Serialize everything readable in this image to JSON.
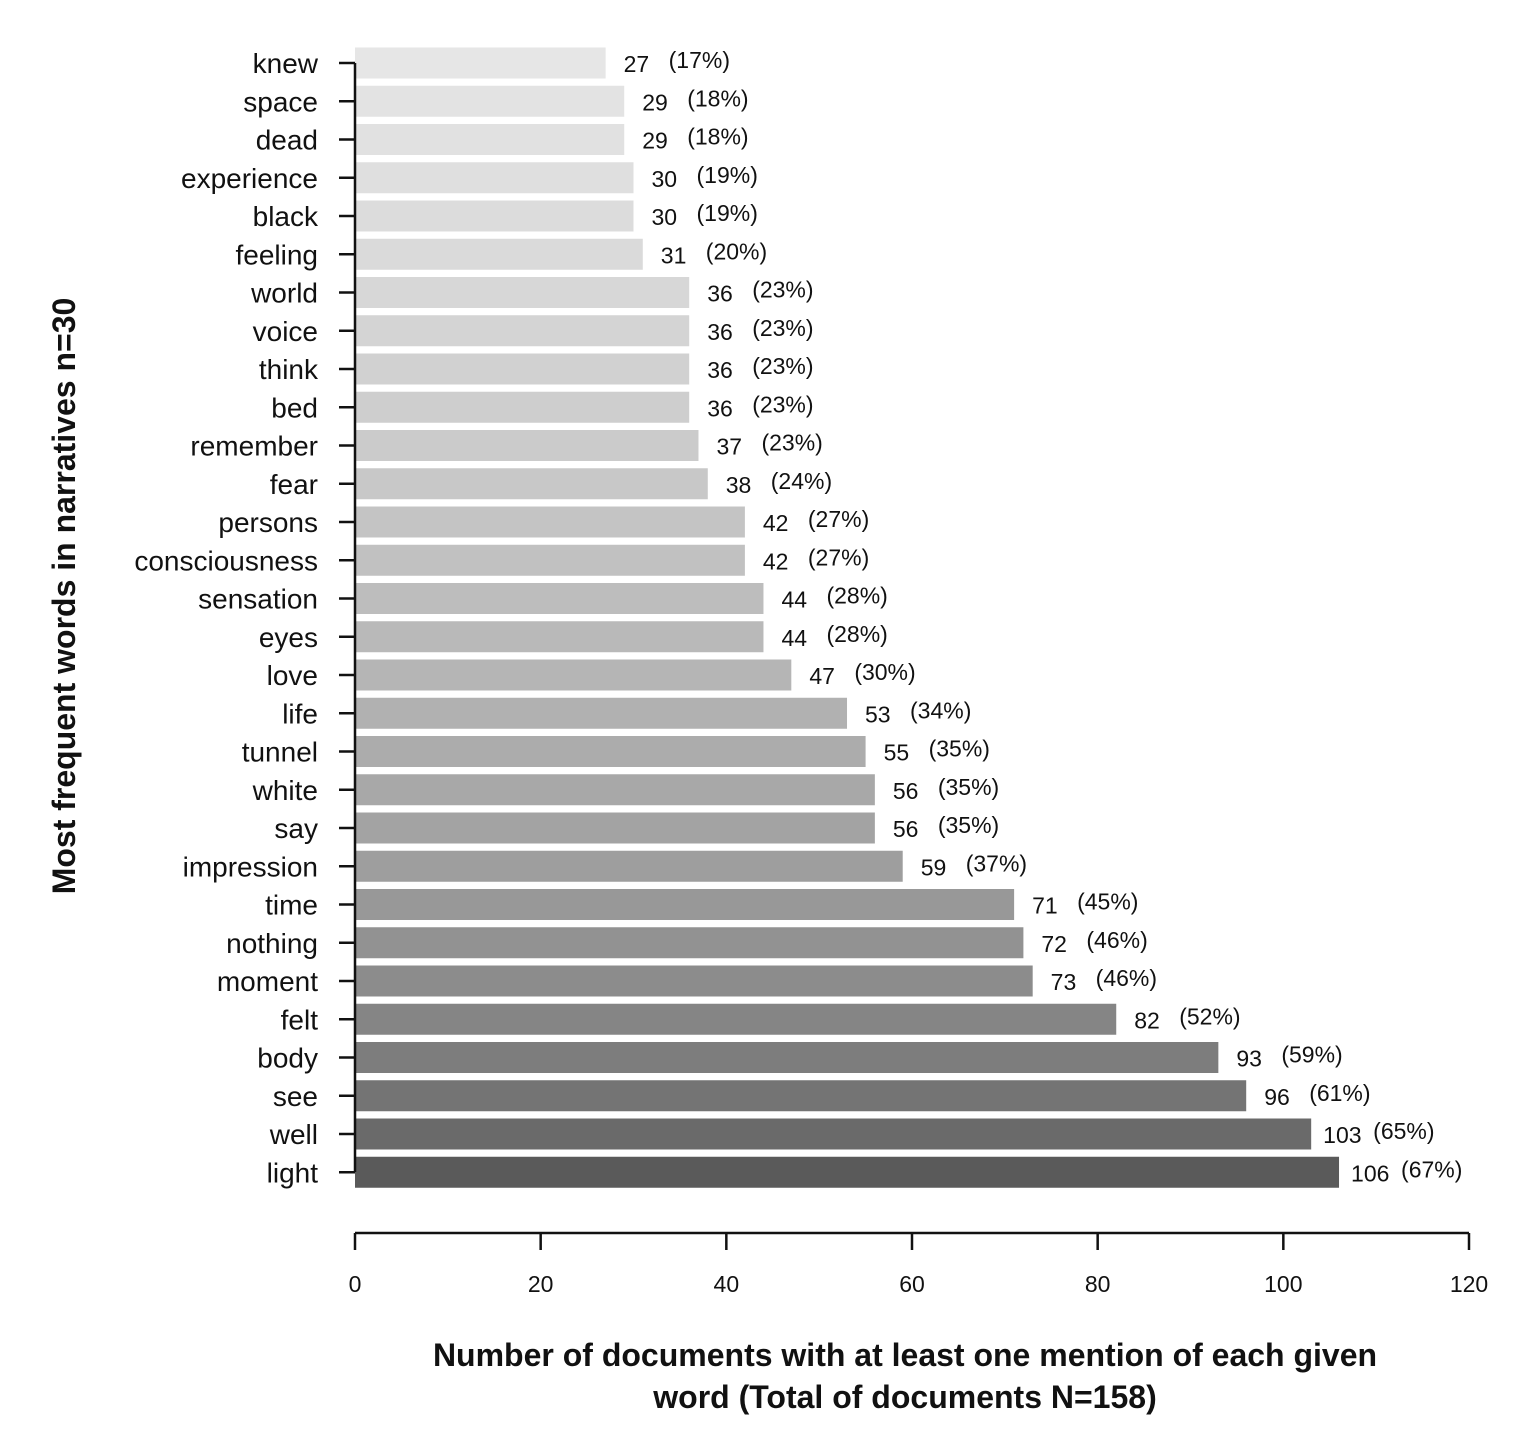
{
  "chart_data": {
    "type": "bar",
    "orientation": "horizontal",
    "categories": [
      "knew",
      "space",
      "dead",
      "experience",
      "black",
      "feeling",
      "world",
      "voice",
      "think",
      "bed",
      "remember",
      "fear",
      "persons",
      "consciousness",
      "sensation",
      "eyes",
      "love",
      "life",
      "tunnel",
      "white",
      "say",
      "impression",
      "time",
      "nothing",
      "moment",
      "felt",
      "body",
      "see",
      "well",
      "light"
    ],
    "values": [
      27,
      29,
      29,
      30,
      30,
      31,
      36,
      36,
      36,
      36,
      37,
      38,
      42,
      42,
      44,
      44,
      47,
      53,
      55,
      56,
      56,
      59,
      71,
      72,
      73,
      82,
      93,
      96,
      103,
      106
    ],
    "percent_labels": [
      "(17%)",
      "(18%)",
      "(18%)",
      "(19%)",
      "(19%)",
      "(20%)",
      "(23%)",
      "(23%)",
      "(23%)",
      "(23%)",
      "(23%)",
      "(24%)",
      "(27%)",
      "(27%)",
      "(28%)",
      "(28%)",
      "(30%)",
      "(34%)",
      "(35%)",
      "(35%)",
      "(35%)",
      "(37%)",
      "(45%)",
      "(46%)",
      "(46%)",
      "(52%)",
      "(59%)",
      "(61%)",
      "(65%)",
      "(67%)"
    ],
    "xlabel_lines": [
      "Number of documents with at least one mention of each given",
      "word (Total of documents N=158)"
    ],
    "ylabel": "Most frequent words in narratives n=30",
    "xlim": [
      0,
      120
    ],
    "xticks": [
      0,
      20,
      40,
      60,
      80,
      100,
      120
    ],
    "grid": false,
    "legend": "none",
    "bar_colors": [
      "#e6e6e6",
      "#e3e3e3",
      "#e1e1e1",
      "#dfdfdf",
      "#dcdcdc",
      "#dadada",
      "#d7d7d7",
      "#d4d4d4",
      "#d1d1d1",
      "#cecece",
      "#cbcbcb",
      "#c8c8c8",
      "#c4c4c4",
      "#c1c1c1",
      "#bdbdbd",
      "#b9b9b9",
      "#b5b5b5",
      "#b1b1b1",
      "#acacac",
      "#a8a8a8",
      "#a3a3a3",
      "#9e9e9e",
      "#989898",
      "#929292",
      "#8c8c8c",
      "#858585",
      "#7d7d7d",
      "#747474",
      "#6a6a6a",
      "#5a5a5a"
    ]
  }
}
